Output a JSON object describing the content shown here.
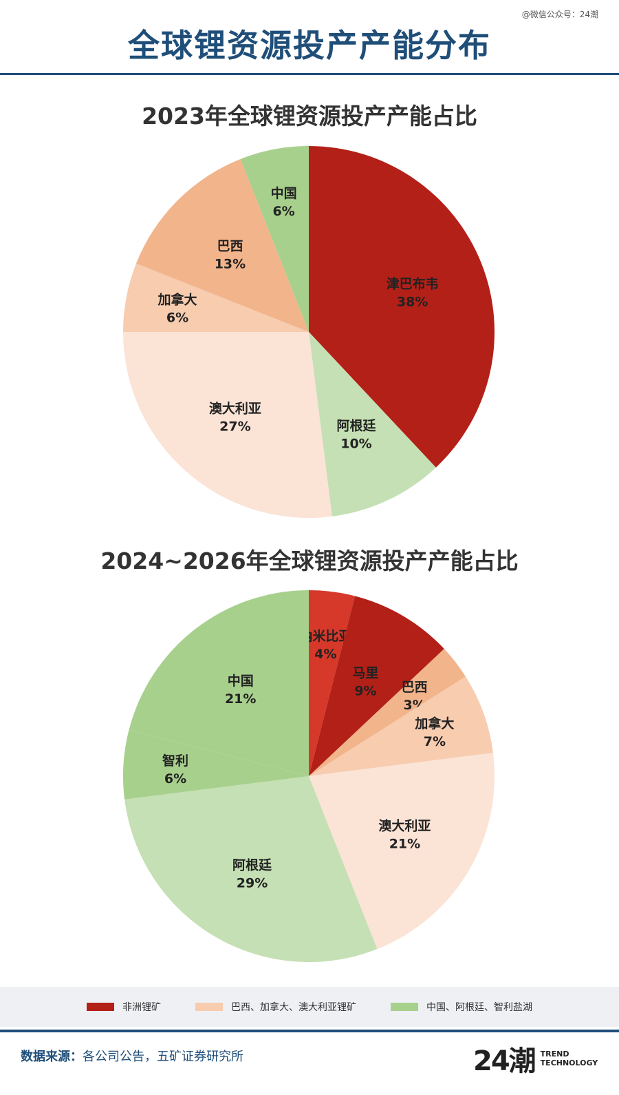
{
  "watermark": "@微信公众号：24潮",
  "title": "全球锂资源投产产能分布",
  "colors": {
    "title": "#1f4e79",
    "africa": "#b32018",
    "africa_light": "#d6382a",
    "america_aus_dark": "#f2b48b",
    "america_aus_mid": "#f7ccaf",
    "america_aus_light": "#fbe3d6",
    "salt_dark": "#a8d08d",
    "salt_light": "#c5e0b4"
  },
  "chart_data": [
    {
      "type": "pie",
      "title": "2023年全球锂资源投产产能占比",
      "slices": [
        {
          "name": "津巴布韦",
          "value": 38,
          "label": "38%",
          "color": "#b32018"
        },
        {
          "name": "阿根廷",
          "value": 10,
          "label": "10%",
          "color": "#c5e0b4"
        },
        {
          "name": "澳大利亚",
          "value": 27,
          "label": "27%",
          "color": "#fbe3d6"
        },
        {
          "name": "加拿大",
          "value": 6,
          "label": "6%",
          "color": "#f7ccaf"
        },
        {
          "name": "巴西",
          "value": 13,
          "label": "13%",
          "color": "#f2b48b"
        },
        {
          "name": "中国",
          "value": 6,
          "label": "6%",
          "color": "#a8d08d"
        }
      ]
    },
    {
      "type": "pie",
      "title": "2024~2026年全球锂资源投产产能占比",
      "slices": [
        {
          "name": "纳米比亚",
          "value": 4,
          "label": "4%",
          "color": "#d6382a"
        },
        {
          "name": "马里",
          "value": 9,
          "label": "9%",
          "color": "#b32018"
        },
        {
          "name": "巴西",
          "value": 3,
          "label": "3%",
          "color": "#f2b48b"
        },
        {
          "name": "加拿大",
          "value": 7,
          "label": "7%",
          "color": "#f7ccaf"
        },
        {
          "name": "澳大利亚",
          "value": 21,
          "label": "21%",
          "color": "#fbe3d6"
        },
        {
          "name": "阿根廷",
          "value": 29,
          "label": "29%",
          "color": "#c5e0b4"
        },
        {
          "name": "智利",
          "value": 6,
          "label": "6%",
          "color": "#a8d08d"
        },
        {
          "name": "中国",
          "value": 21,
          "label": "21%",
          "color": "#a8d08d"
        }
      ]
    }
  ],
  "legend": [
    {
      "label": "非洲锂矿",
      "color": "#b32018"
    },
    {
      "label": "巴西、加拿大、澳大利亚锂矿",
      "color": "#f7ccaf"
    },
    {
      "label": "中国、阿根廷、智利盐湖",
      "color": "#a8d08d"
    }
  ],
  "source": {
    "label": "数据来源：",
    "text": "各公司公告，五矿证券研究所"
  },
  "logo": {
    "mark": "24潮",
    "line1": "TREND",
    "line2": "TECHNOLOGY"
  }
}
